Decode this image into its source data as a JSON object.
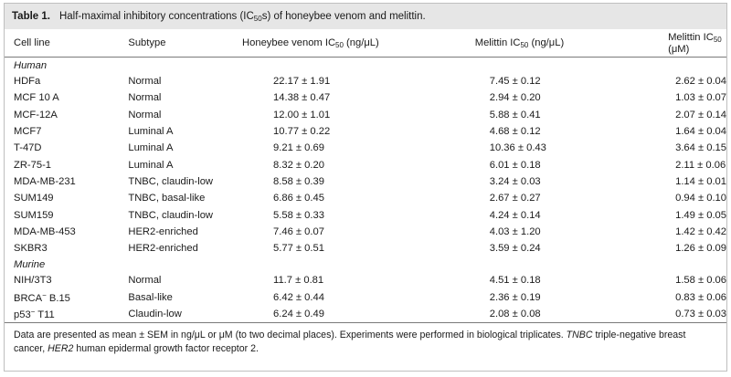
{
  "table": {
    "label": "Table 1.",
    "caption_pre": "Half-maximal inhibitory concentrations (IC",
    "caption_sub": "50",
    "caption_post": "s) of honeybee venom and melittin.",
    "headers": {
      "cell_line": "Cell line",
      "subtype": "Subtype",
      "venom_pre": "Honeybee venom IC",
      "venom_sub": "50",
      "venom_unit": " (ng/μL)",
      "mel_pre": "Melittin IC",
      "mel_sub": "50",
      "mel_unit": " (ng/μL)",
      "mel_um_pre": "Melittin IC",
      "mel_um_sub": "50",
      "mel_um_unit": " (μM)"
    },
    "groups": [
      {
        "name": "Human",
        "rows": [
          {
            "cell": "HDFa",
            "subtype": "Normal",
            "venom": "22.17 ± 1.91",
            "mel": "7.45 ± 0.12",
            "mel_um": "2.62 ± 0.04"
          },
          {
            "cell": "MCF 10 A",
            "subtype": "Normal",
            "venom": "14.38 ± 0.47",
            "mel": "2.94 ± 0.20",
            "mel_um": "1.03 ± 0.07"
          },
          {
            "cell": "MCF-12A",
            "subtype": "Normal",
            "venom": "12.00 ± 1.01",
            "mel": "5.88 ± 0.41",
            "mel_um": "2.07 ± 0.14"
          },
          {
            "cell": "MCF7",
            "subtype": "Luminal A",
            "venom": "10.77 ± 0.22",
            "mel": "4.68 ± 0.12",
            "mel_um": "1.64 ± 0.04"
          },
          {
            "cell": "T-47D",
            "subtype": "Luminal A",
            "venom": "9.21 ± 0.69",
            "mel": "10.36 ± 0.43",
            "mel_um": "3.64 ± 0.15"
          },
          {
            "cell": "ZR-75-1",
            "subtype": "Luminal A",
            "venom": "8.32 ± 0.20",
            "mel": "6.01 ± 0.18",
            "mel_um": "2.11 ± 0.06"
          },
          {
            "cell": "MDA-MB-231",
            "subtype": "TNBC, claudin-low",
            "venom": "8.58 ± 0.39",
            "mel": "3.24 ± 0.03",
            "mel_um": "1.14 ± 0.01"
          },
          {
            "cell": "SUM149",
            "subtype": "TNBC, basal-like",
            "venom": "6.86 ± 0.45",
            "mel": "2.67 ± 0.27",
            "mel_um": "0.94 ± 0.10"
          },
          {
            "cell": "SUM159",
            "subtype": "TNBC, claudin-low",
            "venom": "5.58 ± 0.33",
            "mel": "4.24 ± 0.14",
            "mel_um": "1.49 ± 0.05"
          },
          {
            "cell": "MDA-MB-453",
            "subtype": "HER2-enriched",
            "venom": "7.46 ± 0.07",
            "mel": "4.03 ± 1.20",
            "mel_um": "1.42 ± 0.42"
          },
          {
            "cell": "SKBR3",
            "subtype": "HER2-enriched",
            "venom": "5.77 ± 0.51",
            "mel": "3.59 ± 0.24",
            "mel_um": "1.26 ± 0.09"
          }
        ]
      },
      {
        "name": "Murine",
        "rows": [
          {
            "cell": "NIH/3T3",
            "subtype": "Normal",
            "venom": "11.7 ± 0.81",
            "mel": "4.51 ± 0.18",
            "mel_um": "1.58 ± 0.06"
          },
          {
            "cell": "BRCA",
            "cell_sup": "−",
            "cell_post": " B.15",
            "subtype": "Basal-like",
            "venom": "6.42 ± 0.44",
            "mel": "2.36 ± 0.19",
            "mel_um": "0.83 ± 0.06"
          },
          {
            "cell": "p53",
            "cell_sup": "−",
            "cell_post": " T11",
            "subtype": "Claudin-low",
            "venom": "6.24 ± 0.49",
            "mel": "2.08 ± 0.08",
            "mel_um": "0.73 ± 0.03"
          }
        ]
      }
    ],
    "footnote": {
      "line1": "Data are presented as mean ± SEM in ng/μL or μM (to two decimal places). Experiments were performed in biological triplicates. ",
      "tnbc_abbr": "TNBC",
      "tnbc_def": " triple-negative breast cancer, ",
      "her2_abbr": "HER2",
      "her2_def": " human epidermal growth factor receptor 2."
    }
  }
}
